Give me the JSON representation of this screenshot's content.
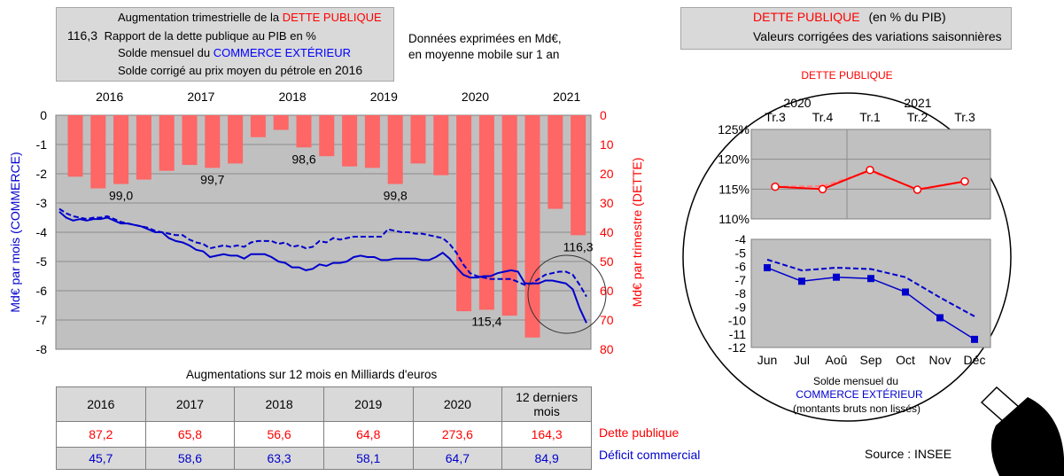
{
  "main_legend": {
    "bar_label_prefix": "Augmentation trimestrielle de la ",
    "bar_label_highlight": "DETTE PUBLIQUE",
    "ratio_sample": "116,3",
    "ratio_label": "Rapport de la dette publique au PIB en %",
    "solid_label_prefix": "Solde mensuel du ",
    "solid_label_highlight": "COMMERCE EXTÉRIEUR",
    "dashed_label_prefix": "Solde corrigé au prix moyen du pétrole en ",
    "dashed_label_year": "2016"
  },
  "note": {
    "line1": "Données exprimées en Md€,",
    "line2": "en moyenne mobile sur 1 an"
  },
  "zoom_legend": {
    "solid_label_highlight": "DETTE PUBLIQUE",
    "solid_label_suffix": "(en % du PIB)",
    "dashed_label": "Valeurs corrigées des variations saisonnières"
  },
  "colors": {
    "bar": "#ff6666",
    "debt_line": "#ff0000",
    "trade_line": "#0000cc",
    "plot_bg": "#c0c0c0",
    "legend_bg": "#d9d9d9"
  },
  "chart_data": [
    {
      "type": "bar",
      "x_axis_labels": [
        "2016",
        "2017",
        "2018",
        "2019",
        "2020",
        "2021"
      ],
      "ylabel_left": "Md€ par mois (COMMERCE)",
      "ylabel_right": "Md€ par trimestre (DETTE)",
      "ylim_left": [
        -8,
        0
      ],
      "ylim_right": [
        80,
        0
      ],
      "left_ticks": [
        "0",
        "-1",
        "-2",
        "-3",
        "-4",
        "-5",
        "-6",
        "-7",
        "-8"
      ],
      "right_ticks": [
        "0",
        "10",
        "20",
        "30",
        "40",
        "50",
        "60",
        "70",
        "80"
      ],
      "grid": true,
      "bar_series": {
        "name": "Augmentation trimestrielle de la DETTE PUBLIQUE",
        "values": [
          21,
          25,
          23.5,
          22,
          19,
          17,
          18,
          16.5,
          7.5,
          5,
          11,
          14,
          17.5,
          18,
          23.5,
          16.5,
          20.5,
          67,
          66.5,
          68.5,
          76,
          32,
          41
        ]
      },
      "ratio_labels": [
        {
          "bar_index": 2,
          "text": "99,0"
        },
        {
          "bar_index": 6,
          "text": "99,7"
        },
        {
          "bar_index": 10,
          "text": "98,6"
        },
        {
          "bar_index": 14,
          "text": "99,8"
        },
        {
          "bar_index": 18,
          "text": "115,4"
        },
        {
          "bar_index": 22,
          "text": "116,3"
        }
      ],
      "series": [
        {
          "name": "Solde mensuel du COMMERCE EXTÉRIEUR",
          "style": "solid",
          "values": [
            -3.3,
            -3.5,
            -3.6,
            -3.55,
            -3.6,
            -3.55,
            -3.55,
            -3.5,
            -3.6,
            -3.7,
            -3.7,
            -3.75,
            -3.8,
            -3.9,
            -4,
            -4,
            -4.2,
            -4.3,
            -4.35,
            -4.45,
            -4.6,
            -4.65,
            -4.85,
            -4.8,
            -4.75,
            -4.8,
            -4.8,
            -4.9,
            -4.75,
            -4.75,
            -4.75,
            -4.85,
            -5,
            -5.05,
            -5.2,
            -5.2,
            -5.3,
            -5.25,
            -5.1,
            -5.15,
            -5.05,
            -5.05,
            -5,
            -4.85,
            -4.8,
            -4.85,
            -4.85,
            -4.95,
            -4.95,
            -4.9,
            -4.9,
            -4.9,
            -4.9,
            -4.95,
            -4.95,
            -4.85,
            -4.7,
            -4.9,
            -5.2,
            -5.45,
            -5.55,
            -5.55,
            -5.5,
            -5.5,
            -5.4,
            -5.35,
            -5.3,
            -5.35,
            -5.75,
            -5.75,
            -5.75,
            -5.65,
            -5.65,
            -5.7,
            -5.75,
            -5.95,
            -6.6,
            -7.1
          ]
        },
        {
          "name": "Solde corrigé au prix moyen du pétrole en 2016",
          "style": "dashed",
          "values": [
            -3.2,
            -3.35,
            -3.45,
            -3.5,
            -3.55,
            -3.5,
            -3.5,
            -3.45,
            -3.55,
            -3.65,
            -3.7,
            -3.75,
            -3.8,
            -3.85,
            -3.95,
            -4,
            -4.05,
            -4.1,
            -4.1,
            -4.25,
            -4.35,
            -4.4,
            -4.55,
            -4.5,
            -4.45,
            -4.5,
            -4.45,
            -4.5,
            -4.35,
            -4.3,
            -4.3,
            -4.3,
            -4.4,
            -4.35,
            -4.5,
            -4.45,
            -4.55,
            -4.5,
            -4.3,
            -4.35,
            -4.2,
            -4.25,
            -4.2,
            -4.15,
            -4.15,
            -4.15,
            -4.15,
            -4.15,
            -3.9,
            -3.95,
            -4,
            -4,
            -4.05,
            -4.05,
            -4.1,
            -4.15,
            -4.2,
            -4.4,
            -4.7,
            -5.1,
            -5.4,
            -5.5,
            -5.55,
            -5.6,
            -5.6,
            -5.6,
            -5.6,
            -5.7,
            -5.8,
            -5.75,
            -5.6,
            -5.45,
            -5.4,
            -5.35,
            -5.35,
            -5.45,
            -5.8,
            -6.2
          ]
        }
      ]
    },
    {
      "type": "line",
      "title": "DETTE PUBLIQUE",
      "year_labels": [
        "2020",
        "2021"
      ],
      "categories": [
        "Tr.3",
        "Tr.4",
        "Tr.1",
        "Tr.2",
        "Tr.3"
      ],
      "y_ticks": [
        "125%",
        "120%",
        "115%",
        "110%"
      ],
      "ylim": [
        110,
        125
      ],
      "series": [
        {
          "name": "DETTE PUBLIQUE (en % du PIB)",
          "style": "solid",
          "values": [
            115.4,
            115,
            118.2,
            114.9,
            116.3
          ]
        },
        {
          "name": "Valeurs corrigées des variations saisonnières",
          "style": "dashed",
          "values": [
            115.4,
            115.5,
            118,
            115,
            116.3
          ]
        }
      ]
    },
    {
      "type": "line",
      "categories": [
        "Jun",
        "Jul",
        "Aoû",
        "Sep",
        "Oct",
        "Nov",
        "Déc"
      ],
      "y_ticks": [
        "-4",
        "-5",
        "-6",
        "-7",
        "-8",
        "-9",
        "-10",
        "-11",
        "-12"
      ],
      "ylim": [
        -12,
        -4
      ],
      "caption_line1": "Solde mensuel du",
      "caption_line2": "COMMERCE EXTÉRIEUR",
      "caption_line3": "(montants bruts non lissés)",
      "series": [
        {
          "style": "solid",
          "values": [
            -6.1,
            -7.1,
            -6.8,
            -6.9,
            -7.9,
            -9.8,
            -11.4
          ]
        },
        {
          "style": "dashed",
          "values": [
            -5.5,
            -6.3,
            -6.1,
            -6.2,
            -6.8,
            -8.3,
            -9.7
          ]
        }
      ]
    }
  ],
  "table": {
    "title": "Augmentations sur 12 mois en Milliards d'euros",
    "headers": [
      "2016",
      "2017",
      "2018",
      "2019",
      "2020"
    ],
    "last_header_line1": "12 derniers",
    "last_header_line2": "mois",
    "row_debt": [
      "87,2",
      "65,8",
      "56,6",
      "64,8",
      "273,6",
      "164,3"
    ],
    "row_trade": [
      "45,7",
      "58,6",
      "63,3",
      "58,1",
      "64,7",
      "84,9"
    ],
    "row_debt_label": "Dette publique",
    "row_trade_label": "Déficit commercial"
  },
  "source": "Source : INSEE"
}
